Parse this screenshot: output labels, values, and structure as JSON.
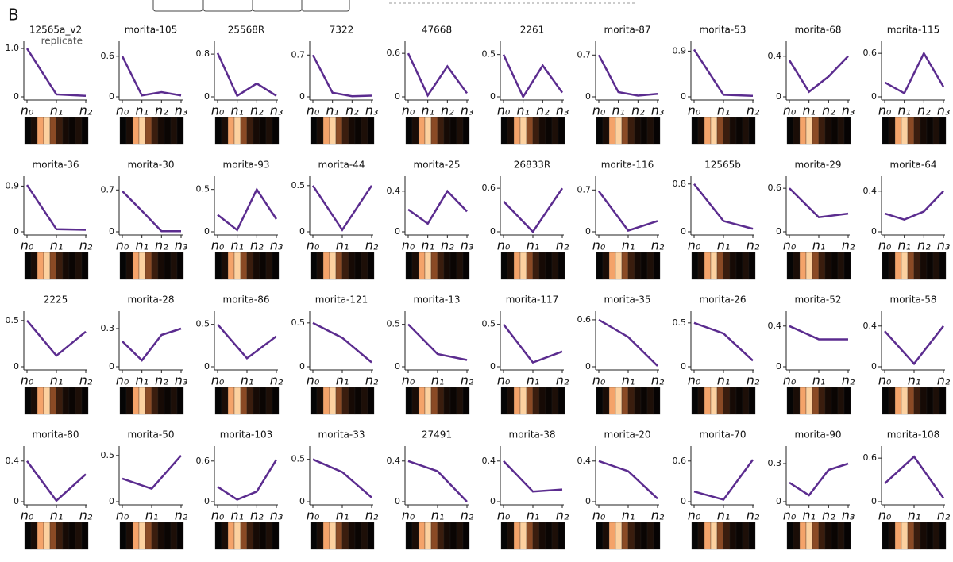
{
  "panel_label": "B",
  "chart_data": [
    {
      "type": "line",
      "title": "12565a_v2",
      "annotation": "replicate",
      "categories": [
        "n₀",
        "n₁",
        "n₂"
      ],
      "values": [
        1.0,
        0.05,
        0.02
      ],
      "color": "#5b2c8f",
      "ylim": [
        0,
        1.05
      ],
      "yticks": [
        0,
        {
          "value": 1,
          "label": "1.0"
        }
      ]
    },
    {
      "type": "line",
      "title": "morita-105",
      "categories": [
        "n₀",
        "n₁",
        "n₂",
        "n₃"
      ],
      "values": [
        0.6,
        0.02,
        0.07,
        0.02
      ],
      "color": "#5b2c8f",
      "ylim": [
        0,
        0.75
      ],
      "yticks": [
        0,
        0.6
      ]
    },
    {
      "type": "line",
      "title": "25568R",
      "categories": [
        "n₀",
        "n₁",
        "n₂",
        "n₃"
      ],
      "values": [
        0.82,
        0.02,
        0.25,
        0.02
      ],
      "color": "#5b2c8f",
      "ylim": [
        0,
        0.95
      ],
      "yticks": [
        0,
        0.8
      ]
    },
    {
      "type": "line",
      "title": "7322",
      "categories": [
        "n₀",
        "n₁",
        "n₂",
        "n₃"
      ],
      "values": [
        0.7,
        0.07,
        0.01,
        0.02
      ],
      "color": "#5b2c8f",
      "ylim": [
        0,
        0.85
      ],
      "yticks": [
        0,
        0.7
      ]
    },
    {
      "type": "line",
      "title": "47668",
      "categories": [
        "n₀",
        "n₁",
        "n₂",
        "n₃"
      ],
      "values": [
        0.6,
        0.02,
        0.42,
        0.05
      ],
      "color": "#5b2c8f",
      "ylim": [
        0,
        0.7
      ],
      "yticks": [
        0,
        0.6
      ]
    },
    {
      "type": "line",
      "title": "2261",
      "categories": [
        "n₀",
        "n₁",
        "n₂",
        "n₃"
      ],
      "values": [
        0.5,
        0.0,
        0.37,
        0.05
      ],
      "color": "#5b2c8f",
      "ylim": [
        0,
        0.6
      ],
      "yticks": [
        0,
        0.5
      ]
    },
    {
      "type": "line",
      "title": "morita-87",
      "categories": [
        "n₀",
        "n₁",
        "n₂",
        "n₃"
      ],
      "values": [
        0.7,
        0.08,
        0.02,
        0.05
      ],
      "color": "#5b2c8f",
      "ylim": [
        0,
        0.85
      ],
      "yticks": [
        0,
        0.7
      ]
    },
    {
      "type": "line",
      "title": "morita-53",
      "categories": [
        "n₀",
        "n₁",
        "n₂"
      ],
      "values": [
        0.93,
        0.04,
        0.02
      ],
      "color": "#5b2c8f",
      "ylim": [
        0,
        1.0
      ],
      "yticks": [
        0,
        0.9
      ]
    },
    {
      "type": "line",
      "title": "morita-68",
      "categories": [
        "n₀",
        "n₁",
        "n₂",
        "n₃"
      ],
      "values": [
        0.36,
        0.05,
        0.2,
        0.4
      ],
      "color": "#5b2c8f",
      "ylim": [
        0,
        0.5
      ],
      "yticks": [
        0,
        0.4
      ]
    },
    {
      "type": "line",
      "title": "morita-115",
      "categories": [
        "n₀",
        "n₁",
        "n₂",
        "n₃"
      ],
      "values": [
        0.2,
        0.05,
        0.6,
        0.14
      ],
      "color": "#5b2c8f",
      "ylim": [
        0,
        0.7
      ],
      "yticks": [
        0,
        0.6
      ]
    },
    {
      "type": "line",
      "title": "morita-36",
      "categories": [
        "n₀",
        "n₁",
        "n₂"
      ],
      "values": [
        0.92,
        0.05,
        0.04
      ],
      "color": "#5b2c8f",
      "ylim": [
        0,
        1.0
      ],
      "yticks": [
        0,
        0.9
      ]
    },
    {
      "type": "line",
      "title": "morita-30",
      "categories": [
        "n₀",
        "n₁",
        "n₂",
        "n₃"
      ],
      "values": [
        0.68,
        0.35,
        0.01,
        0.01
      ],
      "color": "#5b2c8f",
      "ylim": [
        0,
        0.85
      ],
      "yticks": [
        0,
        0.7
      ]
    },
    {
      "type": "line",
      "title": "morita-93",
      "categories": [
        "n₀",
        "n₁",
        "n₂",
        "n₃"
      ],
      "values": [
        0.2,
        0.02,
        0.5,
        0.15
      ],
      "color": "#5b2c8f",
      "ylim": [
        0,
        0.6
      ],
      "yticks": [
        0,
        0.5
      ]
    },
    {
      "type": "line",
      "title": "morita-44",
      "categories": [
        "n₀",
        "n₁",
        "n₂"
      ],
      "values": [
        0.5,
        0.02,
        0.5
      ],
      "color": "#5b2c8f",
      "ylim": [
        0,
        0.55
      ],
      "yticks": [
        0,
        0.5
      ]
    },
    {
      "type": "line",
      "title": "morita-25",
      "categories": [
        "n₀",
        "n₁",
        "n₂",
        "n₃"
      ],
      "values": [
        0.22,
        0.08,
        0.4,
        0.2
      ],
      "color": "#5b2c8f",
      "ylim": [
        0,
        0.5
      ],
      "yticks": [
        0,
        0.4
      ]
    },
    {
      "type": "line",
      "title": "26833R",
      "categories": [
        "n₀",
        "n₁",
        "n₂"
      ],
      "values": [
        0.42,
        0.0,
        0.6
      ],
      "color": "#5b2c8f",
      "ylim": [
        0,
        0.7
      ],
      "yticks": [
        0,
        0.6
      ]
    },
    {
      "type": "line",
      "title": "morita-116",
      "categories": [
        "n₀",
        "n₁",
        "n₂"
      ],
      "values": [
        0.68,
        0.02,
        0.18
      ],
      "color": "#5b2c8f",
      "ylim": [
        0,
        0.85
      ],
      "yticks": [
        0,
        0.7
      ]
    },
    {
      "type": "line",
      "title": "12565b",
      "categories": [
        "n₀",
        "n₁",
        "n₂"
      ],
      "values": [
        0.8,
        0.18,
        0.05
      ],
      "color": "#5b2c8f",
      "ylim": [
        0,
        0.85
      ],
      "yticks": [
        0,
        0.8
      ]
    },
    {
      "type": "line",
      "title": "morita-29",
      "categories": [
        "n₀",
        "n₁",
        "n₂"
      ],
      "values": [
        0.6,
        0.2,
        0.25
      ],
      "color": "#5b2c8f",
      "ylim": [
        0,
        0.7
      ],
      "yticks": [
        0,
        0.6
      ]
    },
    {
      "type": "line",
      "title": "morita-64",
      "categories": [
        "n₀",
        "n₁",
        "n₂",
        "n₃"
      ],
      "values": [
        0.18,
        0.12,
        0.2,
        0.4
      ],
      "color": "#5b2c8f",
      "ylim": [
        0,
        0.5
      ],
      "yticks": [
        0,
        0.4
      ]
    },
    {
      "type": "line",
      "title": "2225",
      "categories": [
        "n₀",
        "n₁",
        "n₂"
      ],
      "values": [
        0.5,
        0.12,
        0.38
      ],
      "color": "#5b2c8f",
      "ylim": [
        0,
        0.55
      ],
      "yticks": [
        0,
        0.5
      ]
    },
    {
      "type": "line",
      "title": "morita-28",
      "categories": [
        "n₀",
        "n₁",
        "n₂",
        "n₃"
      ],
      "values": [
        0.2,
        0.05,
        0.25,
        0.3
      ],
      "color": "#5b2c8f",
      "ylim": [
        0,
        0.4
      ],
      "yticks": [
        0,
        0.3
      ]
    },
    {
      "type": "line",
      "title": "morita-86",
      "categories": [
        "n₀",
        "n₁",
        "n₂"
      ],
      "values": [
        0.5,
        0.1,
        0.36
      ],
      "color": "#5b2c8f",
      "ylim": [
        0,
        0.6
      ],
      "yticks": [
        0,
        0.5
      ]
    },
    {
      "type": "line",
      "title": "morita-121",
      "categories": [
        "n₀",
        "n₁",
        "n₂"
      ],
      "values": [
        0.5,
        0.33,
        0.05
      ],
      "color": "#5b2c8f",
      "ylim": [
        0,
        0.58
      ],
      "yticks": [
        0,
        0.5
      ]
    },
    {
      "type": "line",
      "title": "morita-13",
      "categories": [
        "n₀",
        "n₁",
        "n₂"
      ],
      "values": [
        0.5,
        0.15,
        0.08
      ],
      "color": "#5b2c8f",
      "ylim": [
        0,
        0.6
      ],
      "yticks": [
        0,
        0.5
      ]
    },
    {
      "type": "line",
      "title": "morita-117",
      "categories": [
        "n₀",
        "n₁",
        "n₂"
      ],
      "values": [
        0.5,
        0.05,
        0.18
      ],
      "color": "#5b2c8f",
      "ylim": [
        0,
        0.6
      ],
      "yticks": [
        0,
        0.5
      ]
    },
    {
      "type": "line",
      "title": "morita-35",
      "categories": [
        "n₀",
        "n₁",
        "n₂"
      ],
      "values": [
        0.6,
        0.38,
        0.01
      ],
      "color": "#5b2c8f",
      "ylim": [
        0,
        0.65
      ],
      "yticks": [
        0,
        0.6
      ]
    },
    {
      "type": "line",
      "title": "morita-26",
      "categories": [
        "n₀",
        "n₁",
        "n₂"
      ],
      "values": [
        0.5,
        0.38,
        0.07
      ],
      "color": "#5b2c8f",
      "ylim": [
        0,
        0.58
      ],
      "yticks": [
        0,
        0.5
      ]
    },
    {
      "type": "line",
      "title": "morita-52",
      "categories": [
        "n₀",
        "n₁",
        "n₂"
      ],
      "values": [
        0.4,
        0.27,
        0.27
      ],
      "color": "#5b2c8f",
      "ylim": [
        0,
        0.5
      ],
      "yticks": [
        0,
        0.4
      ]
    },
    {
      "type": "line",
      "title": "morita-58",
      "categories": [
        "n₀",
        "n₁",
        "n₂"
      ],
      "values": [
        0.35,
        0.03,
        0.4
      ],
      "color": "#5b2c8f",
      "ylim": [
        0,
        0.5
      ],
      "yticks": [
        0,
        0.4
      ]
    },
    {
      "type": "line",
      "title": "morita-80",
      "categories": [
        "n₀",
        "n₁",
        "n₂"
      ],
      "values": [
        0.4,
        0.01,
        0.27
      ],
      "color": "#5b2c8f",
      "ylim": [
        0,
        0.5
      ],
      "yticks": [
        0,
        0.4
      ]
    },
    {
      "type": "line",
      "title": "morita-50",
      "categories": [
        "n₀",
        "n₁",
        "n₂"
      ],
      "values": [
        0.25,
        0.14,
        0.5
      ],
      "color": "#5b2c8f",
      "ylim": [
        0,
        0.55
      ],
      "yticks": [
        0,
        0.5
      ]
    },
    {
      "type": "line",
      "title": "morita-103",
      "categories": [
        "n₀",
        "n₁",
        "n₂",
        "n₃"
      ],
      "values": [
        0.22,
        0.03,
        0.15,
        0.62
      ],
      "color": "#5b2c8f",
      "ylim": [
        0,
        0.75
      ],
      "yticks": [
        0,
        0.6
      ]
    },
    {
      "type": "line",
      "title": "morita-33",
      "categories": [
        "n₀",
        "n₁",
        "n₂"
      ],
      "values": [
        0.5,
        0.35,
        0.05
      ],
      "color": "#5b2c8f",
      "ylim": [
        0,
        0.6
      ],
      "yticks": [
        0,
        0.5
      ]
    },
    {
      "type": "line",
      "title": "27491",
      "categories": [
        "n₀",
        "n₁",
        "n₂"
      ],
      "values": [
        0.4,
        0.3,
        0.0
      ],
      "color": "#5b2c8f",
      "ylim": [
        0,
        0.5
      ],
      "yticks": [
        0,
        0.4
      ]
    },
    {
      "type": "line",
      "title": "morita-38",
      "categories": [
        "n₀",
        "n₁",
        "n₂"
      ],
      "values": [
        0.4,
        0.1,
        0.12
      ],
      "color": "#5b2c8f",
      "ylim": [
        0,
        0.5
      ],
      "yticks": [
        0,
        0.4
      ]
    },
    {
      "type": "line",
      "title": "morita-20",
      "categories": [
        "n₀",
        "n₁",
        "n₂"
      ],
      "values": [
        0.4,
        0.3,
        0.03
      ],
      "color": "#5b2c8f",
      "ylim": [
        0,
        0.5
      ],
      "yticks": [
        0,
        0.4
      ]
    },
    {
      "type": "line",
      "title": "morita-70",
      "categories": [
        "n₀",
        "n₁",
        "n₂"
      ],
      "values": [
        0.15,
        0.03,
        0.62
      ],
      "color": "#5b2c8f",
      "ylim": [
        0,
        0.75
      ],
      "yticks": [
        0,
        0.6
      ]
    },
    {
      "type": "line",
      "title": "morita-90",
      "categories": [
        "n₀",
        "n₁",
        "n₂",
        "n₃"
      ],
      "values": [
        0.15,
        0.05,
        0.25,
        0.3
      ],
      "color": "#5b2c8f",
      "ylim": [
        0,
        0.4
      ],
      "yticks": [
        0,
        0.3
      ]
    },
    {
      "type": "line",
      "title": "morita-108",
      "categories": [
        "n₀",
        "n₁",
        "n₂"
      ],
      "values": [
        0.25,
        0.62,
        0.05
      ],
      "color": "#5b2c8f",
      "ylim": [
        0,
        0.7
      ],
      "yticks": [
        0,
        0.6
      ]
    }
  ]
}
